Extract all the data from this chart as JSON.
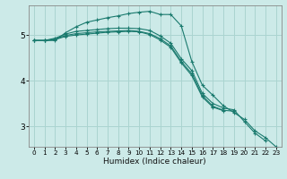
{
  "xlabel": "Humidex (Indice chaleur)",
  "ylabel": "",
  "bg_color": "#cceae8",
  "grid_color": "#aad4d0",
  "line_color": "#1a7a6e",
  "xlim": [
    -0.5,
    23.5
  ],
  "ylim": [
    2.55,
    5.65
  ],
  "xticks": [
    0,
    1,
    2,
    3,
    4,
    5,
    6,
    7,
    8,
    9,
    10,
    11,
    12,
    13,
    14,
    15,
    16,
    17,
    18,
    19,
    20,
    21,
    22,
    23
  ],
  "yticks": [
    3,
    4,
    5
  ],
  "series": [
    [
      4.88,
      4.88,
      4.88,
      5.05,
      5.18,
      5.28,
      5.33,
      5.38,
      5.42,
      5.47,
      5.5,
      5.52,
      5.45,
      5.45,
      5.2,
      4.42,
      3.9,
      3.68,
      3.45,
      3.3,
      3.15,
      2.9,
      2.75,
      2.55
    ],
    [
      4.88,
      4.88,
      4.93,
      5.02,
      5.08,
      5.1,
      5.12,
      5.14,
      5.15,
      5.15,
      5.14,
      5.1,
      4.98,
      4.82,
      4.48,
      4.22,
      3.72,
      3.5,
      3.4,
      3.36,
      3.1,
      2.85,
      2.68,
      null
    ],
    [
      4.88,
      4.88,
      4.91,
      4.99,
      5.03,
      5.05,
      5.07,
      5.08,
      5.09,
      5.1,
      5.08,
      5.03,
      4.92,
      4.76,
      4.42,
      4.15,
      3.67,
      3.44,
      3.35,
      3.33,
      null,
      null,
      null,
      null
    ],
    [
      4.88,
      4.88,
      4.9,
      4.97,
      5.0,
      5.02,
      5.04,
      5.06,
      5.07,
      5.08,
      5.07,
      5.01,
      4.89,
      4.73,
      4.39,
      4.11,
      3.64,
      3.42,
      3.34,
      null,
      null,
      null,
      null,
      null
    ]
  ]
}
